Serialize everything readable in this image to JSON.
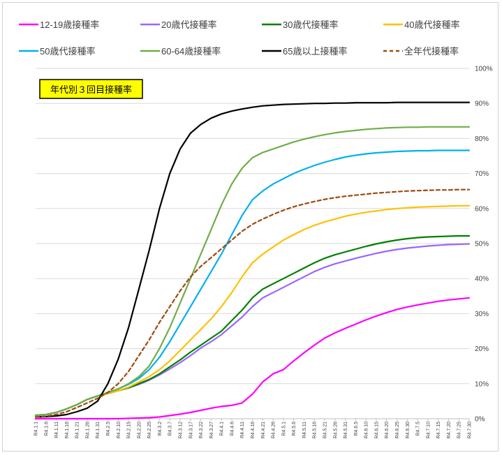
{
  "chart_data": {
    "type": "line",
    "title": "年代別３回目接種率",
    "title_box": {
      "fill": "#ffff00",
      "border": "#000000"
    },
    "xlabel": "",
    "ylabel": "",
    "ylim": [
      0,
      100
    ],
    "y_ticks": [
      "0%",
      "10%",
      "20%",
      "30%",
      "40%",
      "50%",
      "60%",
      "70%",
      "80%",
      "90%",
      "100%"
    ],
    "y_axis_side": "right",
    "grid": true,
    "legend_position": "top",
    "x": [
      "R4.1.1",
      "R4.1.6",
      "R4.1.11",
      "R4.1.16",
      "R4.1.21",
      "R4.1.26",
      "R4.1.31",
      "R4.2.5",
      "R4.2.10",
      "R4.2.15",
      "R4.2.20",
      "R4.2.25",
      "R4.3.2",
      "R4.3.7",
      "R4.3.12",
      "R4.3.17",
      "R4.3.22",
      "R4.3.27",
      "R4.4.1",
      "R4.4.6",
      "R4.4.11",
      "R4.4.16",
      "R4.4.21",
      "R4.4.26",
      "R4.5.1",
      "R4.5.6",
      "R4.5.11",
      "R4.5.16",
      "R4.5.21",
      "R4.5.26",
      "R4.5.31",
      "R4.6.5",
      "R4.6.10",
      "R4.6.15",
      "R4.6.20",
      "R4.6.25",
      "R4.6.30",
      "R4.7.5",
      "R4.7.10",
      "R4.7.15",
      "R4.7.20",
      "R4.7.25",
      "R4.7.30"
    ],
    "series": [
      {
        "name": "12-19歳接種率",
        "color": "#ff00ff",
        "dash": false,
        "values": [
          0,
          0,
          0,
          0,
          0,
          0,
          0,
          0,
          0,
          0.1,
          0.2,
          0.3,
          0.5,
          0.9,
          1.3,
          1.8,
          2.4,
          3.0,
          3.5,
          3.8,
          4.5,
          7.0,
          10.5,
          12.8,
          14.0,
          16.5,
          18.8,
          21.0,
          23.0,
          24.5,
          25.8,
          27.0,
          28.2,
          29.3,
          30.3,
          31.2,
          31.9,
          32.5,
          33.0,
          33.5,
          33.9,
          34.2,
          34.5
        ]
      },
      {
        "name": "20歳代接種率",
        "color": "#9966ff",
        "dash": false,
        "values": [
          1.0,
          1.2,
          1.8,
          2.8,
          4.0,
          5.5,
          6.5,
          7.2,
          8.0,
          8.8,
          9.8,
          11.0,
          12.5,
          14.2,
          16.0,
          18.0,
          20.2,
          22.0,
          24.0,
          26.5,
          29.0,
          32.0,
          34.5,
          36.0,
          37.5,
          39.0,
          40.5,
          42.0,
          43.2,
          44.2,
          45.0,
          45.8,
          46.5,
          47.2,
          47.8,
          48.3,
          48.7,
          49.0,
          49.3,
          49.5,
          49.7,
          49.8,
          49.9
        ]
      },
      {
        "name": "30歳代接種率",
        "color": "#008000",
        "dash": false,
        "values": [
          1.0,
          1.2,
          1.8,
          2.8,
          4.0,
          5.5,
          6.5,
          7.2,
          8.0,
          8.8,
          10.0,
          11.2,
          12.8,
          14.8,
          16.8,
          19.0,
          21.0,
          23.0,
          25.0,
          28.0,
          31.0,
          34.5,
          37.0,
          38.5,
          40.0,
          41.5,
          43.0,
          44.5,
          45.8,
          46.8,
          47.6,
          48.4,
          49.2,
          49.9,
          50.5,
          51.0,
          51.4,
          51.7,
          51.9,
          52.0,
          52.1,
          52.2,
          52.2
        ]
      },
      {
        "name": "40歳代接種率",
        "color": "#ffc000",
        "dash": false,
        "values": [
          1.0,
          1.2,
          1.8,
          2.8,
          4.0,
          5.5,
          6.5,
          7.2,
          8.0,
          9.0,
          10.5,
          12.0,
          14.0,
          16.5,
          19.5,
          22.5,
          25.5,
          28.5,
          32.0,
          36.0,
          40.5,
          44.5,
          47.0,
          49.0,
          51.0,
          52.5,
          54.0,
          55.2,
          56.2,
          57.0,
          57.8,
          58.4,
          58.9,
          59.3,
          59.7,
          60.0,
          60.2,
          60.4,
          60.5,
          60.6,
          60.7,
          60.8,
          60.8
        ]
      },
      {
        "name": "50歳代接種率",
        "color": "#00b0f0",
        "dash": false,
        "values": [
          1.0,
          1.2,
          1.8,
          2.8,
          4.0,
          5.5,
          6.5,
          7.5,
          8.5,
          9.8,
          11.5,
          14.0,
          17.5,
          22.0,
          27.0,
          32.0,
          37.0,
          42.0,
          47.0,
          52.5,
          58.0,
          62.5,
          65.0,
          67.0,
          68.5,
          70.0,
          71.2,
          72.3,
          73.2,
          74.0,
          74.7,
          75.2,
          75.6,
          75.9,
          76.1,
          76.3,
          76.4,
          76.5,
          76.5,
          76.6,
          76.6,
          76.6,
          76.6
        ]
      },
      {
        "name": "60-64歳接種率",
        "color": "#70ad47",
        "dash": false,
        "values": [
          1.0,
          1.2,
          1.8,
          2.8,
          4.0,
          5.5,
          6.5,
          7.5,
          8.5,
          10.0,
          12.0,
          15.0,
          20.0,
          26.0,
          33.0,
          40.0,
          47.0,
          54.0,
          61.0,
          67.0,
          71.5,
          74.5,
          76.0,
          77.0,
          78.0,
          79.0,
          79.8,
          80.5,
          81.1,
          81.6,
          82.0,
          82.3,
          82.6,
          82.8,
          83.0,
          83.1,
          83.2,
          83.2,
          83.3,
          83.3,
          83.3,
          83.3,
          83.3
        ]
      },
      {
        "name": "65歳以上接種率",
        "color": "#000000",
        "dash": false,
        "values": [
          0.5,
          0.6,
          0.8,
          1.2,
          2.0,
          3.0,
          5.0,
          10.0,
          17.0,
          26.0,
          37.0,
          48.0,
          60.0,
          70.0,
          77.0,
          81.5,
          84.0,
          85.8,
          87.0,
          87.8,
          88.4,
          88.9,
          89.3,
          89.5,
          89.7,
          89.8,
          89.9,
          90.0,
          90.0,
          90.1,
          90.1,
          90.2,
          90.2,
          90.2,
          90.2,
          90.3,
          90.3,
          90.3,
          90.3,
          90.3,
          90.3,
          90.3,
          90.3
        ]
      },
      {
        "name": "全年代接種率",
        "color": "#9c4a0f",
        "dash": true,
        "values": [
          0.5,
          0.7,
          1.2,
          2.0,
          3.2,
          4.5,
          5.8,
          7.5,
          10.0,
          13.5,
          18.0,
          22.5,
          27.5,
          32.0,
          36.5,
          40.5,
          43.5,
          46.0,
          48.5,
          51.0,
          53.5,
          55.5,
          57.0,
          58.3,
          59.5,
          60.5,
          61.3,
          62.0,
          62.6,
          63.1,
          63.5,
          63.8,
          64.1,
          64.4,
          64.6,
          64.8,
          65.0,
          65.1,
          65.2,
          65.3,
          65.3,
          65.4,
          65.4
        ]
      }
    ]
  }
}
